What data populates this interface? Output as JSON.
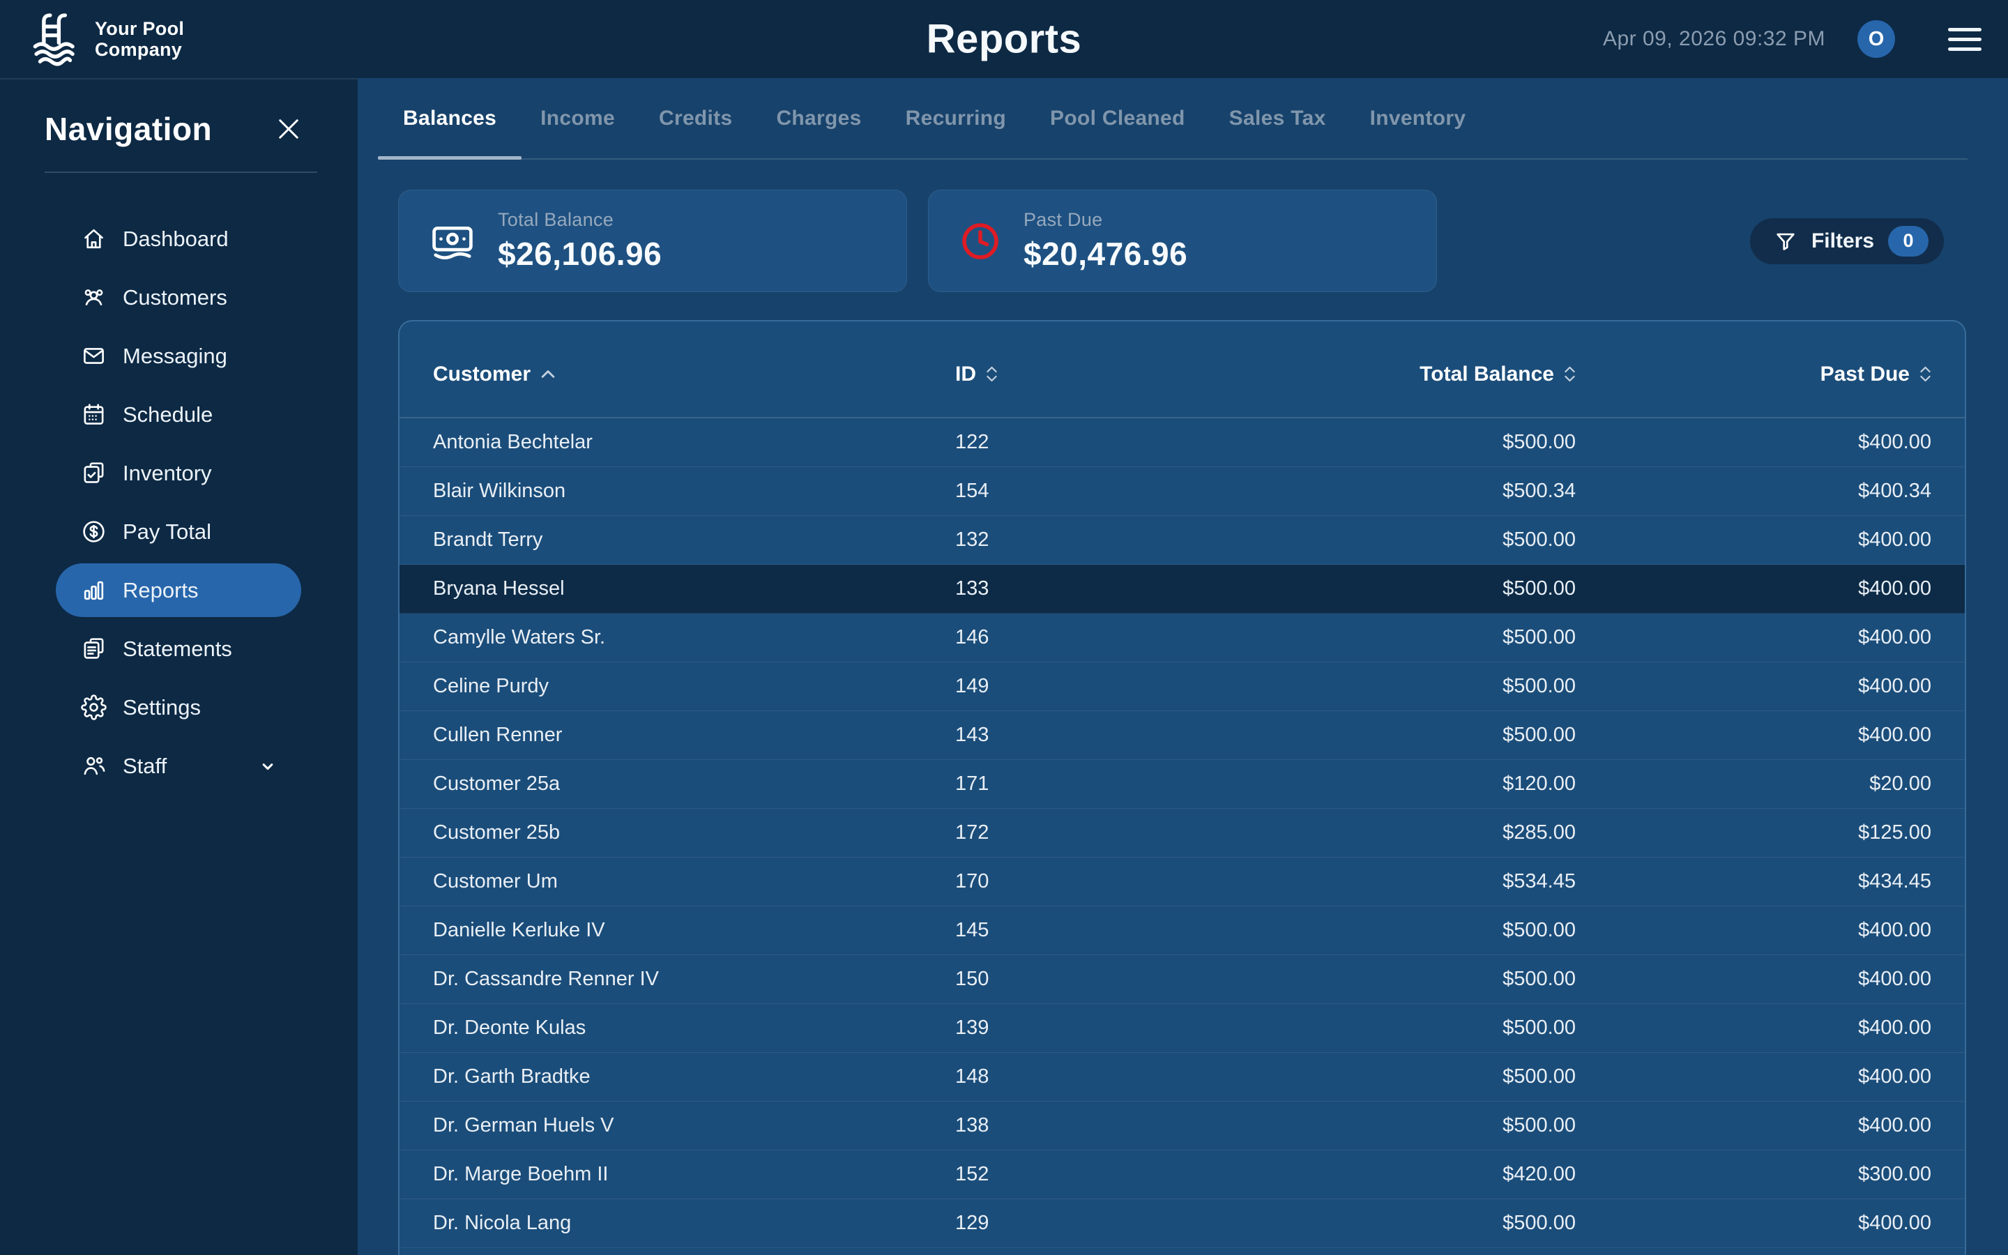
{
  "header": {
    "logo_line1": "Your Pool",
    "logo_line2": "Company",
    "title": "Reports",
    "timestamp": "Apr 09, 2026 09:32 PM",
    "avatar_initial": "O"
  },
  "sidebar": {
    "title": "Navigation",
    "items": [
      {
        "label": "Dashboard",
        "icon": "home-icon",
        "active": false
      },
      {
        "label": "Customers",
        "icon": "customers-icon",
        "active": false
      },
      {
        "label": "Messaging",
        "icon": "envelope-icon",
        "active": false
      },
      {
        "label": "Schedule",
        "icon": "calendar-icon",
        "active": false
      },
      {
        "label": "Inventory",
        "icon": "clipboard-check-icon",
        "active": false
      },
      {
        "label": "Pay Total",
        "icon": "dollar-circle-icon",
        "active": false
      },
      {
        "label": "Reports",
        "icon": "bar-chart-icon",
        "active": true
      },
      {
        "label": "Statements",
        "icon": "clipboard-list-icon",
        "active": false
      },
      {
        "label": "Settings",
        "icon": "gear-icon",
        "active": false
      },
      {
        "label": "Staff",
        "icon": "staff-icon",
        "active": false,
        "expandable": true
      }
    ]
  },
  "tabs": [
    {
      "label": "Balances",
      "active": true
    },
    {
      "label": "Income",
      "active": false
    },
    {
      "label": "Credits",
      "active": false
    },
    {
      "label": "Charges",
      "active": false
    },
    {
      "label": "Recurring",
      "active": false
    },
    {
      "label": "Pool Cleaned",
      "active": false
    },
    {
      "label": "Sales Tax",
      "active": false
    },
    {
      "label": "Inventory",
      "active": false
    }
  ],
  "summary_cards": [
    {
      "label": "Total Balance",
      "value": "$26,106.96",
      "icon": "banknote-icon",
      "icon_color": "#FFFFFF"
    },
    {
      "label": "Past Due",
      "value": "$20,476.96",
      "icon": "clock-icon",
      "icon_color": "#E01B24"
    }
  ],
  "filters_button": {
    "label": "Filters",
    "count": "0"
  },
  "table": {
    "columns": [
      {
        "label": "Customer",
        "sort": "asc",
        "align": "left"
      },
      {
        "label": "ID",
        "sort": "both",
        "align": "left"
      },
      {
        "label": "Total Balance",
        "sort": "both",
        "align": "right"
      },
      {
        "label": "Past Due",
        "sort": "both",
        "align": "right"
      }
    ],
    "rows": [
      {
        "customer": "Antonia Bechtelar",
        "id": "122",
        "total_balance": "$500.00",
        "past_due": "$400.00",
        "highlighted": false
      },
      {
        "customer": "Blair Wilkinson",
        "id": "154",
        "total_balance": "$500.34",
        "past_due": "$400.34",
        "highlighted": false
      },
      {
        "customer": "Brandt Terry",
        "id": "132",
        "total_balance": "$500.00",
        "past_due": "$400.00",
        "highlighted": false
      },
      {
        "customer": "Bryana Hessel",
        "id": "133",
        "total_balance": "$500.00",
        "past_due": "$400.00",
        "highlighted": true
      },
      {
        "customer": "Camylle Waters Sr.",
        "id": "146",
        "total_balance": "$500.00",
        "past_due": "$400.00",
        "highlighted": false
      },
      {
        "customer": "Celine Purdy",
        "id": "149",
        "total_balance": "$500.00",
        "past_due": "$400.00",
        "highlighted": false
      },
      {
        "customer": "Cullen Renner",
        "id": "143",
        "total_balance": "$500.00",
        "past_due": "$400.00",
        "highlighted": false
      },
      {
        "customer": "Customer 25a",
        "id": "171",
        "total_balance": "$120.00",
        "past_due": "$20.00",
        "highlighted": false
      },
      {
        "customer": "Customer 25b",
        "id": "172",
        "total_balance": "$285.00",
        "past_due": "$125.00",
        "highlighted": false
      },
      {
        "customer": "Customer Um",
        "id": "170",
        "total_balance": "$534.45",
        "past_due": "$434.45",
        "highlighted": false
      },
      {
        "customer": "Danielle Kerluke IV",
        "id": "145",
        "total_balance": "$500.00",
        "past_due": "$400.00",
        "highlighted": false
      },
      {
        "customer": "Dr. Cassandre Renner IV",
        "id": "150",
        "total_balance": "$500.00",
        "past_due": "$400.00",
        "highlighted": false
      },
      {
        "customer": "Dr. Deonte Kulas",
        "id": "139",
        "total_balance": "$500.00",
        "past_due": "$400.00",
        "highlighted": false
      },
      {
        "customer": "Dr. Garth Bradtke",
        "id": "148",
        "total_balance": "$500.00",
        "past_due": "$400.00",
        "highlighted": false
      },
      {
        "customer": "Dr. German Huels V",
        "id": "138",
        "total_balance": "$500.00",
        "past_due": "$400.00",
        "highlighted": false
      },
      {
        "customer": "Dr. Marge Boehm II",
        "id": "152",
        "total_balance": "$420.00",
        "past_due": "$300.00",
        "highlighted": false
      },
      {
        "customer": "Dr. Nicola Lang",
        "id": "129",
        "total_balance": "$500.00",
        "past_due": "$400.00",
        "highlighted": false
      }
    ]
  },
  "colors": {
    "header_bg": "#0D2944",
    "sidebar_bg": "#0D2944",
    "main_bg": "#17426B",
    "card_bg": "#1E5181",
    "table_bg": "#1B4D7A",
    "accent_blue": "#2766AB",
    "highlight_row": "#0D2B47",
    "past_due_red": "#E01B24",
    "muted_text": "#97A9BD"
  }
}
